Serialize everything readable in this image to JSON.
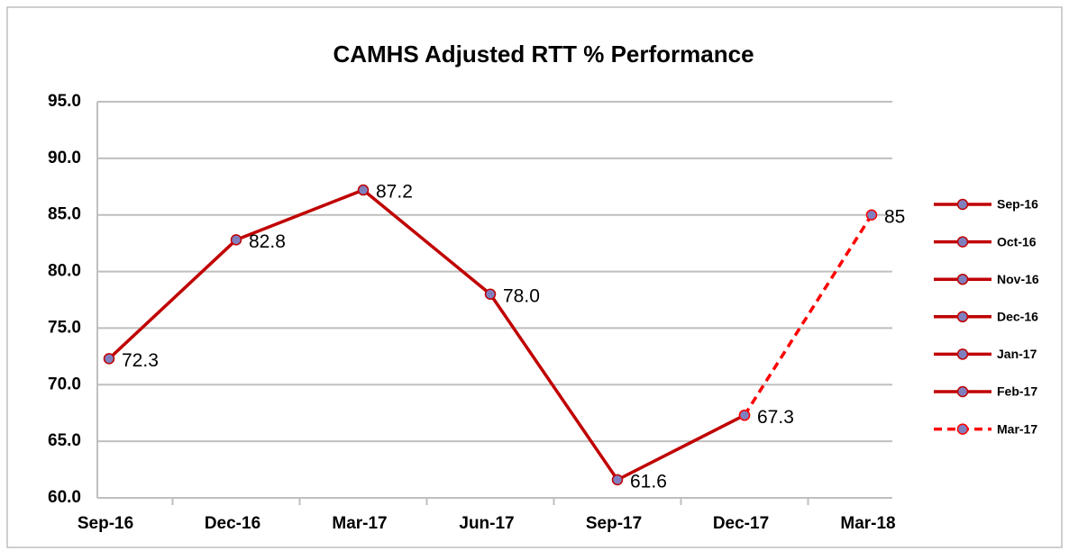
{
  "chart_data": {
    "type": "line",
    "title": "CAMHS Adjusted RTT % Performance",
    "categories": [
      "Sep-16",
      "Dec-16",
      "Mar-17",
      "Jun-17",
      "Sep-17",
      "Dec-17",
      "Mar-18"
    ],
    "series": [
      {
        "name": "Sep-16",
        "color": "#c00000",
        "dashed": false,
        "values": [
          72.3,
          82.8,
          87.2,
          78.0,
          61.6,
          67.3,
          null
        ],
        "value_labels": [
          "72.3",
          "82.8",
          "87.2",
          "78.0",
          "61.6",
          "67.3",
          null
        ]
      },
      {
        "name": "Oct-16",
        "color": "#c00000",
        "dashed": false,
        "values": [
          null,
          null,
          null,
          null,
          null,
          null,
          null
        ]
      },
      {
        "name": "Nov-16",
        "color": "#c00000",
        "dashed": false,
        "values": [
          null,
          null,
          null,
          null,
          null,
          null,
          null
        ]
      },
      {
        "name": "Dec-16",
        "color": "#c00000",
        "dashed": false,
        "values": [
          null,
          null,
          null,
          null,
          null,
          null,
          null
        ]
      },
      {
        "name": "Jan-17",
        "color": "#c00000",
        "dashed": false,
        "values": [
          null,
          null,
          null,
          null,
          null,
          null,
          null
        ]
      },
      {
        "name": "Feb-17",
        "color": "#c00000",
        "dashed": false,
        "values": [
          null,
          null,
          null,
          null,
          null,
          null,
          null
        ]
      },
      {
        "name": "Mar-17",
        "color": "#ff0000",
        "dashed": true,
        "values": [
          null,
          null,
          null,
          null,
          null,
          67.3,
          85
        ],
        "value_labels": [
          null,
          null,
          null,
          null,
          null,
          null,
          "85"
        ]
      }
    ],
    "marker_color": "#7f7fbf",
    "ylim": [
      60,
      95
    ],
    "yticks": [
      {
        "value": 60,
        "label": "60.0"
      },
      {
        "value": 65,
        "label": "65.0"
      },
      {
        "value": 70,
        "label": "70.0"
      },
      {
        "value": 75,
        "label": "75.0"
      },
      {
        "value": 80,
        "label": "80.0"
      },
      {
        "value": 85,
        "label": "85.0"
      },
      {
        "value": 90,
        "label": "90.0"
      },
      {
        "value": 95,
        "label": "95.0"
      }
    ],
    "grid": true,
    "legend": "right"
  }
}
